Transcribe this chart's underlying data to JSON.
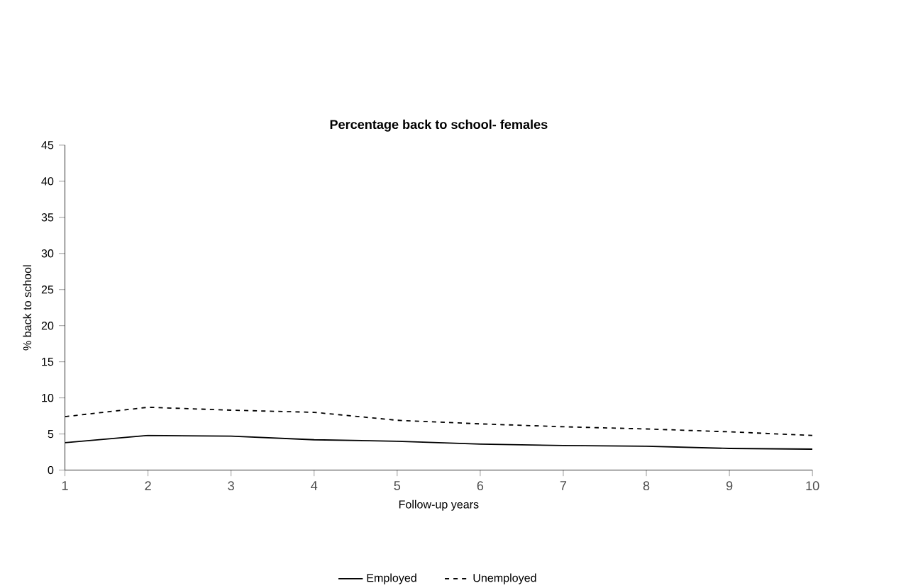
{
  "chart_data": {
    "type": "line",
    "title": "Percentage back to school- females",
    "xlabel": "Follow-up years",
    "ylabel": "% back to school",
    "x": [
      1,
      2,
      3,
      4,
      5,
      6,
      7,
      8,
      9,
      10
    ],
    "series": [
      {
        "name": "Employed",
        "color": "#000000",
        "line_style": "solid",
        "values": [
          3.8,
          4.8,
          4.7,
          4.2,
          4.0,
          3.6,
          3.4,
          3.3,
          3.0,
          2.9
        ]
      },
      {
        "name": "Unemployed",
        "color": "#000000",
        "line_style": "dashed",
        "values": [
          7.4,
          8.7,
          8.3,
          8.0,
          6.9,
          6.4,
          6.0,
          5.7,
          5.3,
          4.8
        ]
      }
    ],
    "xlim": [
      1,
      10
    ],
    "xticks": [
      1,
      2,
      3,
      4,
      5,
      6,
      7,
      8,
      9,
      10
    ],
    "ylim": [
      0,
      45
    ],
    "yticks": [
      0,
      5,
      10,
      15,
      20,
      25,
      30,
      35,
      40,
      45
    ],
    "grid": false,
    "legend": "bottom",
    "marker": "none"
  }
}
